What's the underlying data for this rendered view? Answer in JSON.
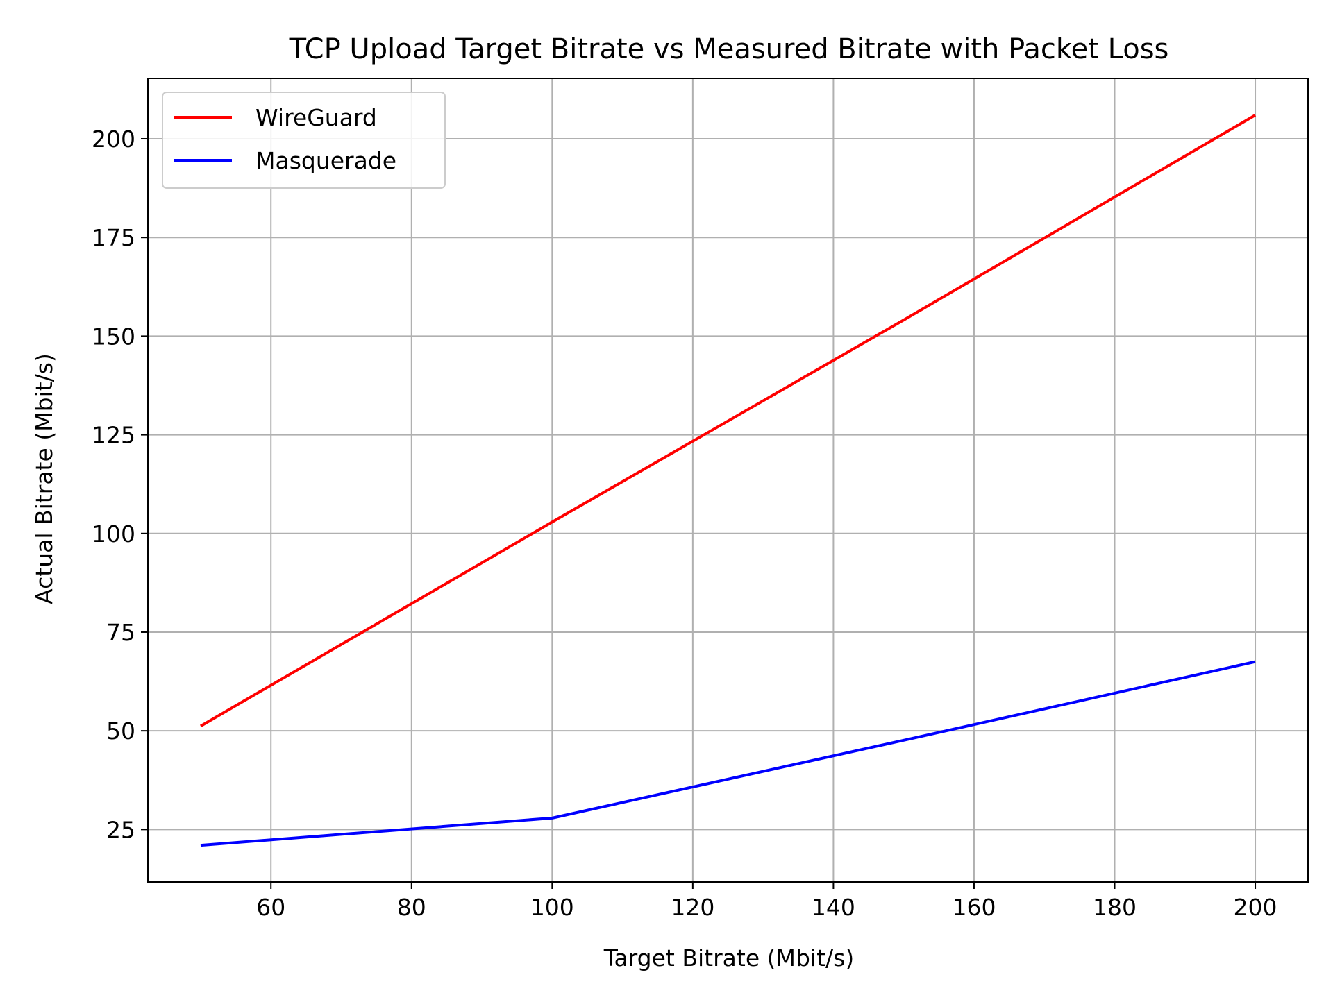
{
  "chart_data": {
    "type": "line",
    "title": "TCP Upload Target Bitrate vs Measured Bitrate with Packet Loss",
    "xlabel": "Target Bitrate (Mbit/s)",
    "ylabel": "Actual Bitrate (Mbit/s)",
    "x": [
      50,
      100,
      150,
      200
    ],
    "xlim": [
      42.5,
      207.5
    ],
    "ylim": [
      11.7,
      215.3
    ],
    "xticks": [
      "60",
      "80",
      "100",
      "120",
      "140",
      "160",
      "180",
      "200"
    ],
    "yticks": [
      "25",
      "50",
      "75",
      "100",
      "125",
      "150",
      "175",
      "200"
    ],
    "grid": true,
    "legend_position": "top-left",
    "series": [
      {
        "name": "WireGuard",
        "color": "#ff0000",
        "values": [
          51.2,
          102.9,
          154.1,
          206.0
        ]
      },
      {
        "name": "Masquerade",
        "color": "#0000ff",
        "values": [
          21.0,
          27.9,
          47.6,
          67.5
        ]
      }
    ]
  }
}
